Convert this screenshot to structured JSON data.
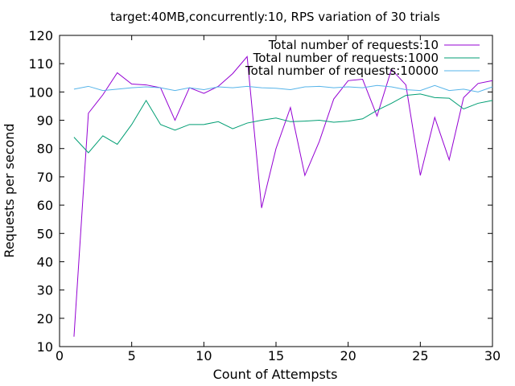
{
  "chart_data": {
    "type": "line",
    "title": "target:40MB,concurrently:10, RPS variation of 30 trials",
    "xlabel": "Count of Attempsts",
    "ylabel": "Requests per second",
    "xlim": [
      0,
      30
    ],
    "ylim": [
      10,
      120
    ],
    "x_ticks": [
      0,
      5,
      10,
      15,
      20,
      25,
      30
    ],
    "y_ticks": [
      10,
      20,
      30,
      40,
      50,
      60,
      70,
      80,
      90,
      100,
      110,
      120
    ],
    "grid": false,
    "legend_position": "top-right",
    "x": [
      1,
      2,
      3,
      4,
      5,
      6,
      7,
      8,
      9,
      10,
      11,
      12,
      13,
      14,
      15,
      16,
      17,
      18,
      19,
      20,
      21,
      22,
      23,
      24,
      25,
      26,
      27,
      28,
      29,
      30
    ],
    "series": [
      {
        "name": "Total number of requests:10",
        "color": "#9400d3",
        "values": [
          13.5,
          92.5,
          99.0,
          106.8,
          102.8,
          102.5,
          101.5,
          90.0,
          101.5,
          99.5,
          102.0,
          106.5,
          112.5,
          59.0,
          80.0,
          94.5,
          70.5,
          82.5,
          97.5,
          104.0,
          104.5,
          91.5,
          108.0,
          102.5,
          70.5,
          91.0,
          76.0,
          98.0,
          103.0,
          104.0
        ]
      },
      {
        "name": "Total number of requests:1000",
        "color": "#009e73",
        "values": [
          84.0,
          78.5,
          84.5,
          81.5,
          88.5,
          97.0,
          88.5,
          86.5,
          88.5,
          88.5,
          89.5,
          87.0,
          89.0,
          90.0,
          90.8,
          89.5,
          89.7,
          90.0,
          89.3,
          89.7,
          90.5,
          93.5,
          96.0,
          98.8,
          99.3,
          98.0,
          97.8,
          94.0,
          96.0,
          97.0
        ]
      },
      {
        "name": "Total number of requests:10000",
        "color": "#56b4e9",
        "values": [
          101.0,
          102.0,
          100.5,
          101.0,
          101.5,
          101.8,
          101.5,
          100.5,
          101.5,
          100.8,
          101.8,
          101.5,
          102.0,
          101.5,
          101.3,
          100.8,
          101.8,
          102.0,
          101.5,
          101.8,
          101.5,
          102.3,
          101.8,
          100.8,
          100.5,
          102.3,
          100.5,
          101.0,
          100.0,
          101.8
        ]
      }
    ]
  }
}
